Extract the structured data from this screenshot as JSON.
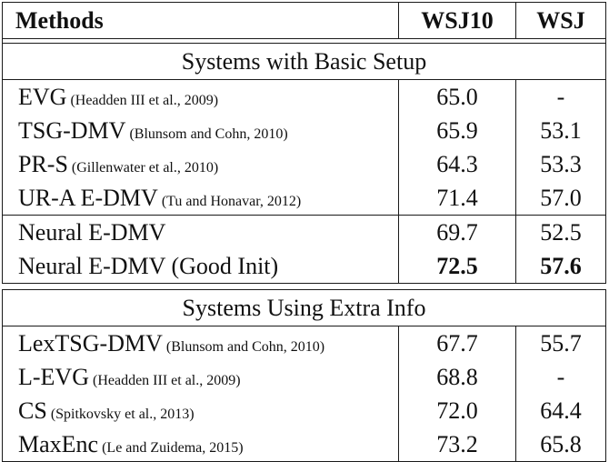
{
  "header": {
    "methods": "Methods",
    "wsj10": "WSJ10",
    "wsj": "WSJ"
  },
  "sections": [
    {
      "title": "Systems with Basic Setup",
      "groups": [
        [
          {
            "name": "EVG",
            "cite": "(Headden III et al., 2009)",
            "wsj10": "65.0",
            "wsj": "-"
          },
          {
            "name": "TSG-DMV",
            "cite": "(Blunsom and Cohn, 2010)",
            "wsj10": "65.9",
            "wsj": "53.1"
          },
          {
            "name": "PR-S",
            "cite": "(Gillenwater et al., 2010)",
            "wsj10": "64.3",
            "wsj": "53.3"
          },
          {
            "name": "UR-A E-DMV",
            "cite": "(Tu and Honavar, 2012)",
            "wsj10": "71.4",
            "wsj": "57.0"
          }
        ],
        [
          {
            "name": "Neural E-DMV",
            "cite": "",
            "wsj10": "69.7",
            "wsj": "52.5"
          },
          {
            "name": "Neural E-DMV (Good Init)",
            "cite": "",
            "wsj10": "72.5",
            "wsj": "57.6"
          }
        ]
      ]
    },
    {
      "title": "Systems Using Extra Info",
      "groups": [
        [
          {
            "name": "LexTSG-DMV",
            "cite": "(Blunsom and Cohn, 2010)",
            "wsj10": "67.7",
            "wsj": "55.7"
          },
          {
            "name": "L-EVG",
            "cite": "(Headden III et al., 2009)",
            "wsj10": "68.8",
            "wsj": "-"
          },
          {
            "name": "CS",
            "cite": "(Spitkovsky et al., 2013)",
            "wsj10": "72.0",
            "wsj": "64.4"
          },
          {
            "name": "MaxEnc",
            "cite": "(Le and Zuidema, 2015)",
            "wsj10": "73.2",
            "wsj": "65.8"
          }
        ]
      ]
    }
  ]
}
